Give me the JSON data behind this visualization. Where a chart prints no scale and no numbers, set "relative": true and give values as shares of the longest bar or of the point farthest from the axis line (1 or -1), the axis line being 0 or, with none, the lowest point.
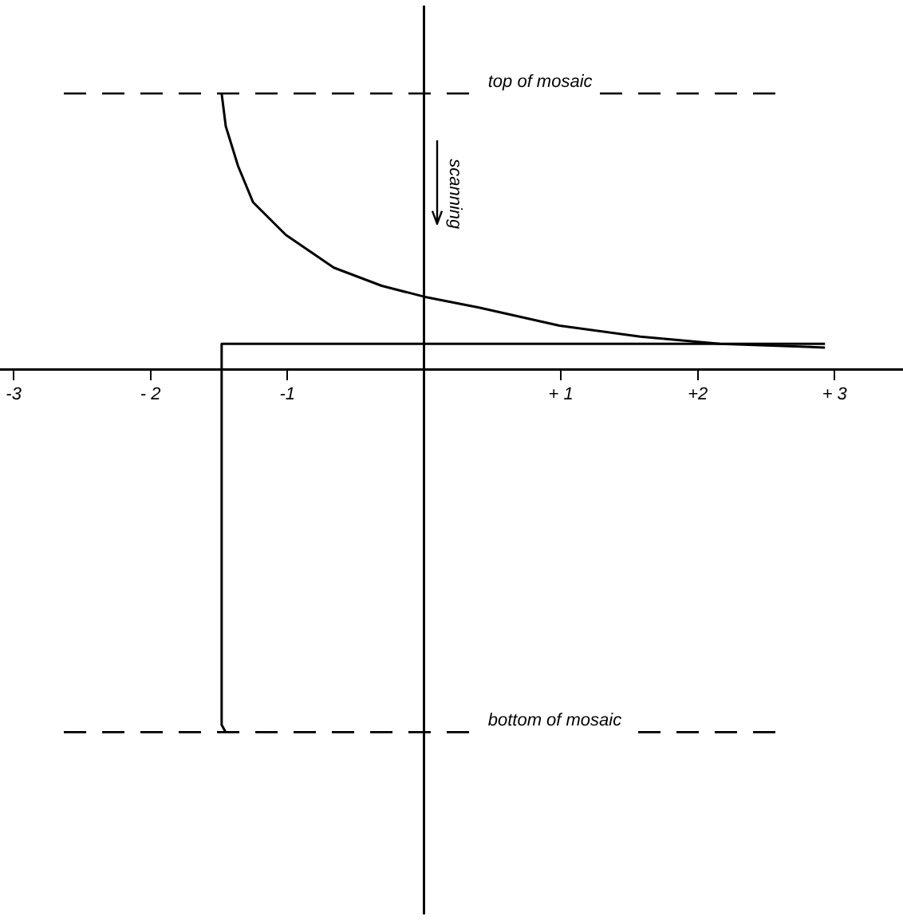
{
  "chart_data": {
    "type": "line",
    "relative": true,
    "xlim": [
      -3.1,
      3.5
    ],
    "xticks": [
      {
        "value": -3,
        "label": "-3"
      },
      {
        "value": -2,
        "label": "- 2"
      },
      {
        "value": -1,
        "label": "-1"
      },
      {
        "value": 1,
        "label": "+ 1"
      },
      {
        "value": 2,
        "label": "+2"
      },
      {
        "value": 3,
        "label": "+ 3"
      }
    ],
    "series": [
      {
        "color": "#000000",
        "x": [
          -1.48,
          -1.45,
          -1.36,
          -1.25,
          -1.01,
          -0.66,
          -0.31,
          0,
          0.4,
          0.99,
          1.58,
          2.16,
          2.93
        ],
        "values": [
          0.76,
          0.67,
          0.56,
          0.46,
          0.37,
          0.28,
          0.23,
          0.2,
          0.17,
          0.12,
          0.09,
          0.07,
          0.06
        ]
      },
      {
        "color": "#000000",
        "x": [
          2.93,
          -1.48,
          -1.48,
          -1.45
        ],
        "values": [
          0.07,
          0.07,
          -0.98,
          -1.0
        ]
      }
    ],
    "ref_lines": [
      {
        "axis": "y",
        "value": 0.76,
        "label": "top of mosaic",
        "line_style": "dashed",
        "color": "#000000"
      },
      {
        "axis": "y",
        "value": -1.0,
        "label": "bottom of mosaic",
        "line_style": "dashed",
        "color": "#000000"
      }
    ],
    "annotations": [
      "scanning"
    ],
    "marker": "none",
    "line_style": "solid",
    "grid": false,
    "legend": false
  }
}
